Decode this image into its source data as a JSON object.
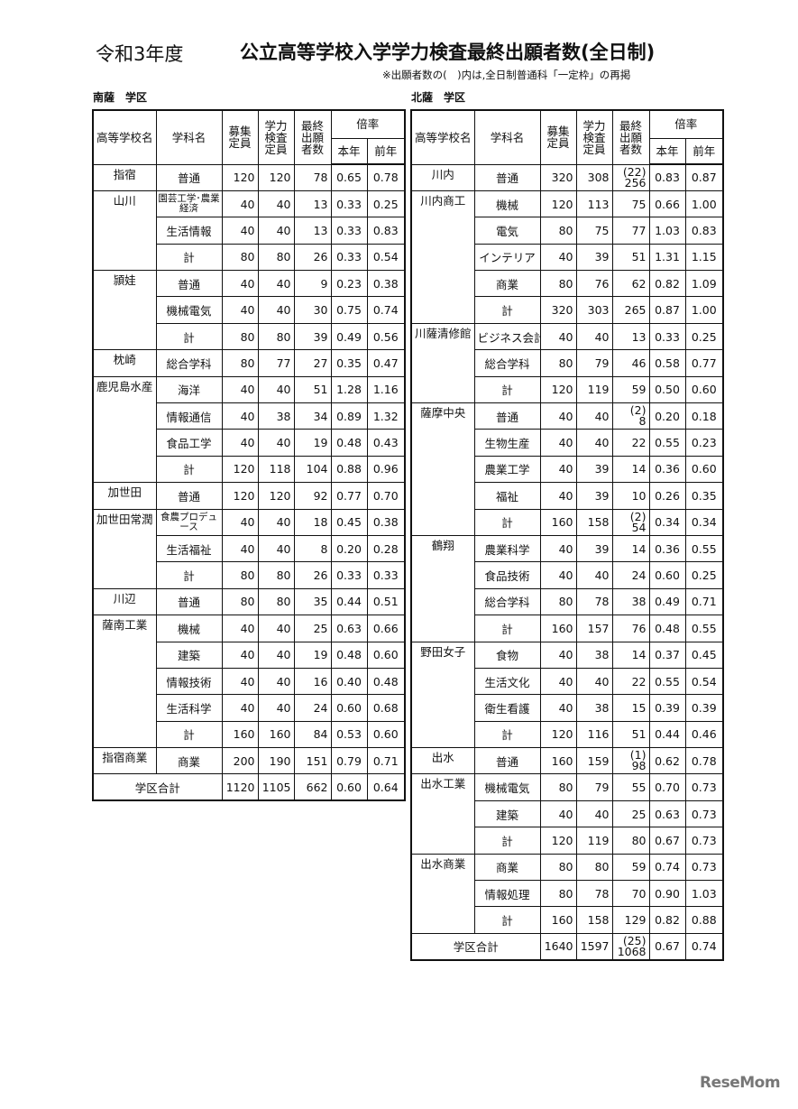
{
  "header": {
    "era": "令和3年度",
    "title": "公立高等学校入学学力検査最終出願者数(全日制)",
    "note": "※出願者数の(　)内は,全日制普通科「一定枠」の再掲"
  },
  "columns": {
    "school": "高等学校名",
    "dept": "学科名",
    "capacity": "募集定員",
    "exam_capacity": "学力検査定員",
    "applicants": "最終出願者数",
    "rate": "倍率",
    "rate_this": "本年",
    "rate_prev": "前年"
  },
  "subtotal_label": "計",
  "total_label": "学区合計",
  "districts": [
    {
      "name": "南薩　学区",
      "schools": [
        {
          "name": "指宿",
          "rows": [
            {
              "dept": "普通",
              "capacity": "120",
              "exam_capacity": "120",
              "applicants": "78",
              "rate_this": "0.65",
              "rate_prev": "0.78"
            }
          ]
        },
        {
          "name": "山川",
          "rows": [
            {
              "dept": "園芸工学･農業経済",
              "capacity": "40",
              "exam_capacity": "40",
              "applicants": "13",
              "rate_this": "0.33",
              "rate_prev": "0.25"
            },
            {
              "dept": "生活情報",
              "capacity": "40",
              "exam_capacity": "40",
              "applicants": "13",
              "rate_this": "0.33",
              "rate_prev": "0.83"
            },
            {
              "dept": "計",
              "capacity": "80",
              "exam_capacity": "80",
              "applicants": "26",
              "rate_this": "0.33",
              "rate_prev": "0.54"
            }
          ]
        },
        {
          "name": "頴娃",
          "rows": [
            {
              "dept": "普通",
              "capacity": "40",
              "exam_capacity": "40",
              "applicants": "9",
              "rate_this": "0.23",
              "rate_prev": "0.38"
            },
            {
              "dept": "機械電気",
              "capacity": "40",
              "exam_capacity": "40",
              "applicants": "30",
              "rate_this": "0.75",
              "rate_prev": "0.74"
            },
            {
              "dept": "計",
              "capacity": "80",
              "exam_capacity": "80",
              "applicants": "39",
              "rate_this": "0.49",
              "rate_prev": "0.56"
            }
          ]
        },
        {
          "name": "枕崎",
          "rows": [
            {
              "dept": "総合学科",
              "capacity": "80",
              "exam_capacity": "77",
              "applicants": "27",
              "rate_this": "0.35",
              "rate_prev": "0.47"
            }
          ]
        },
        {
          "name": "鹿児島水産",
          "rows": [
            {
              "dept": "海洋",
              "capacity": "40",
              "exam_capacity": "40",
              "applicants": "51",
              "rate_this": "1.28",
              "rate_prev": "1.16"
            },
            {
              "dept": "情報通信",
              "capacity": "40",
              "exam_capacity": "38",
              "applicants": "34",
              "rate_this": "0.89",
              "rate_prev": "1.32"
            },
            {
              "dept": "食品工学",
              "capacity": "40",
              "exam_capacity": "40",
              "applicants": "19",
              "rate_this": "0.48",
              "rate_prev": "0.43"
            },
            {
              "dept": "計",
              "capacity": "120",
              "exam_capacity": "118",
              "applicants": "104",
              "rate_this": "0.88",
              "rate_prev": "0.96"
            }
          ]
        },
        {
          "name": "加世田",
          "rows": [
            {
              "dept": "普通",
              "capacity": "120",
              "exam_capacity": "120",
              "applicants": "92",
              "rate_this": "0.77",
              "rate_prev": "0.70"
            }
          ]
        },
        {
          "name": "加世田常潤",
          "rows": [
            {
              "dept": "食農プロデュース",
              "capacity": "40",
              "exam_capacity": "40",
              "applicants": "18",
              "rate_this": "0.45",
              "rate_prev": "0.38"
            },
            {
              "dept": "生活福祉",
              "capacity": "40",
              "exam_capacity": "40",
              "applicants": "8",
              "rate_this": "0.20",
              "rate_prev": "0.28"
            },
            {
              "dept": "計",
              "capacity": "80",
              "exam_capacity": "80",
              "applicants": "26",
              "rate_this": "0.33",
              "rate_prev": "0.33"
            }
          ]
        },
        {
          "name": "川辺",
          "rows": [
            {
              "dept": "普通",
              "capacity": "80",
              "exam_capacity": "80",
              "applicants": "35",
              "rate_this": "0.44",
              "rate_prev": "0.51"
            }
          ]
        },
        {
          "name": "薩南工業",
          "rows": [
            {
              "dept": "機械",
              "capacity": "40",
              "exam_capacity": "40",
              "applicants": "25",
              "rate_this": "0.63",
              "rate_prev": "0.66"
            },
            {
              "dept": "建築",
              "capacity": "40",
              "exam_capacity": "40",
              "applicants": "19",
              "rate_this": "0.48",
              "rate_prev": "0.60"
            },
            {
              "dept": "情報技術",
              "capacity": "40",
              "exam_capacity": "40",
              "applicants": "16",
              "rate_this": "0.40",
              "rate_prev": "0.48"
            },
            {
              "dept": "生活科学",
              "capacity": "40",
              "exam_capacity": "40",
              "applicants": "24",
              "rate_this": "0.60",
              "rate_prev": "0.68"
            },
            {
              "dept": "計",
              "capacity": "160",
              "exam_capacity": "160",
              "applicants": "84",
              "rate_this": "0.53",
              "rate_prev": "0.60"
            }
          ]
        },
        {
          "name": "指宿商業",
          "rows": [
            {
              "dept": "商業",
              "capacity": "200",
              "exam_capacity": "190",
              "applicants": "151",
              "rate_this": "0.79",
              "rate_prev": "0.71"
            }
          ]
        }
      ],
      "total": {
        "capacity": "1120",
        "exam_capacity": "1105",
        "applicants": "662",
        "rate_this": "0.60",
        "rate_prev": "0.64"
      }
    },
    {
      "name": "北薩　学区",
      "schools": [
        {
          "name": "川内",
          "rows": [
            {
              "dept": "普通",
              "capacity": "320",
              "exam_capacity": "308",
              "applicants_quota": "(22)",
              "applicants": "256",
              "rate_this": "0.83",
              "rate_prev": "0.87"
            }
          ]
        },
        {
          "name": "川内商工",
          "rows": [
            {
              "dept": "機械",
              "capacity": "120",
              "exam_capacity": "113",
              "applicants": "75",
              "rate_this": "0.66",
              "rate_prev": "1.00"
            },
            {
              "dept": "電気",
              "capacity": "80",
              "exam_capacity": "75",
              "applicants": "77",
              "rate_this": "1.03",
              "rate_prev": "0.83"
            },
            {
              "dept": "インテリア",
              "capacity": "40",
              "exam_capacity": "39",
              "applicants": "51",
              "rate_this": "1.31",
              "rate_prev": "1.15"
            },
            {
              "dept": "商業",
              "capacity": "80",
              "exam_capacity": "76",
              "applicants": "62",
              "rate_this": "0.82",
              "rate_prev": "1.09"
            },
            {
              "dept": "計",
              "capacity": "320",
              "exam_capacity": "303",
              "applicants": "265",
              "rate_this": "0.87",
              "rate_prev": "1.00"
            }
          ]
        },
        {
          "name": "川薩清修館",
          "rows": [
            {
              "dept": "ビジネス会計",
              "capacity": "40",
              "exam_capacity": "40",
              "applicants": "13",
              "rate_this": "0.33",
              "rate_prev": "0.25"
            },
            {
              "dept": "総合学科",
              "capacity": "80",
              "exam_capacity": "79",
              "applicants": "46",
              "rate_this": "0.58",
              "rate_prev": "0.77"
            },
            {
              "dept": "計",
              "capacity": "120",
              "exam_capacity": "119",
              "applicants": "59",
              "rate_this": "0.50",
              "rate_prev": "0.60"
            }
          ]
        },
        {
          "name": "薩摩中央",
          "rows": [
            {
              "dept": "普通",
              "capacity": "40",
              "exam_capacity": "40",
              "applicants_quota": "(2)",
              "applicants": "8",
              "rate_this": "0.20",
              "rate_prev": "0.18"
            },
            {
              "dept": "生物生産",
              "capacity": "40",
              "exam_capacity": "40",
              "applicants": "22",
              "rate_this": "0.55",
              "rate_prev": "0.23"
            },
            {
              "dept": "農業工学",
              "capacity": "40",
              "exam_capacity": "39",
              "applicants": "14",
              "rate_this": "0.36",
              "rate_prev": "0.60"
            },
            {
              "dept": "福祉",
              "capacity": "40",
              "exam_capacity": "39",
              "applicants": "10",
              "rate_this": "0.26",
              "rate_prev": "0.35"
            },
            {
              "dept": "計",
              "capacity": "160",
              "exam_capacity": "158",
              "applicants_quota": "(2)",
              "applicants": "54",
              "rate_this": "0.34",
              "rate_prev": "0.34"
            }
          ]
        },
        {
          "name": "鶴翔",
          "rows": [
            {
              "dept": "農業科学",
              "capacity": "40",
              "exam_capacity": "39",
              "applicants": "14",
              "rate_this": "0.36",
              "rate_prev": "0.55"
            },
            {
              "dept": "食品技術",
              "capacity": "40",
              "exam_capacity": "40",
              "applicants": "24",
              "rate_this": "0.60",
              "rate_prev": "0.25"
            },
            {
              "dept": "総合学科",
              "capacity": "80",
              "exam_capacity": "78",
              "applicants": "38",
              "rate_this": "0.49",
              "rate_prev": "0.71"
            },
            {
              "dept": "計",
              "capacity": "160",
              "exam_capacity": "157",
              "applicants": "76",
              "rate_this": "0.48",
              "rate_prev": "0.55"
            }
          ]
        },
        {
          "name": "野田女子",
          "rows": [
            {
              "dept": "食物",
              "capacity": "40",
              "exam_capacity": "38",
              "applicants": "14",
              "rate_this": "0.37",
              "rate_prev": "0.45"
            },
            {
              "dept": "生活文化",
              "capacity": "40",
              "exam_capacity": "40",
              "applicants": "22",
              "rate_this": "0.55",
              "rate_prev": "0.54"
            },
            {
              "dept": "衛生看護",
              "capacity": "40",
              "exam_capacity": "38",
              "applicants": "15",
              "rate_this": "0.39",
              "rate_prev": "0.39"
            },
            {
              "dept": "計",
              "capacity": "120",
              "exam_capacity": "116",
              "applicants": "51",
              "rate_this": "0.44",
              "rate_prev": "0.46"
            }
          ]
        },
        {
          "name": "出水",
          "rows": [
            {
              "dept": "普通",
              "capacity": "160",
              "exam_capacity": "159",
              "applicants_quota": "(1)",
              "applicants": "98",
              "rate_this": "0.62",
              "rate_prev": "0.78"
            }
          ]
        },
        {
          "name": "出水工業",
          "rows": [
            {
              "dept": "機械電気",
              "capacity": "80",
              "exam_capacity": "79",
              "applicants": "55",
              "rate_this": "0.70",
              "rate_prev": "0.73"
            },
            {
              "dept": "建築",
              "capacity": "40",
              "exam_capacity": "40",
              "applicants": "25",
              "rate_this": "0.63",
              "rate_prev": "0.73"
            },
            {
              "dept": "計",
              "capacity": "120",
              "exam_capacity": "119",
              "applicants": "80",
              "rate_this": "0.67",
              "rate_prev": "0.73"
            }
          ]
        },
        {
          "name": "出水商業",
          "rows": [
            {
              "dept": "商業",
              "capacity": "80",
              "exam_capacity": "80",
              "applicants": "59",
              "rate_this": "0.74",
              "rate_prev": "0.73"
            },
            {
              "dept": "情報処理",
              "capacity": "80",
              "exam_capacity": "78",
              "applicants": "70",
              "rate_this": "0.90",
              "rate_prev": "1.03"
            },
            {
              "dept": "計",
              "capacity": "160",
              "exam_capacity": "158",
              "applicants": "129",
              "rate_this": "0.82",
              "rate_prev": "0.88"
            }
          ]
        }
      ],
      "total": {
        "capacity": "1640",
        "exam_capacity": "1597",
        "applicants_quota": "(25)",
        "applicants": "1068",
        "rate_this": "0.67",
        "rate_prev": "0.74"
      }
    }
  ],
  "logo": "ReseMom"
}
